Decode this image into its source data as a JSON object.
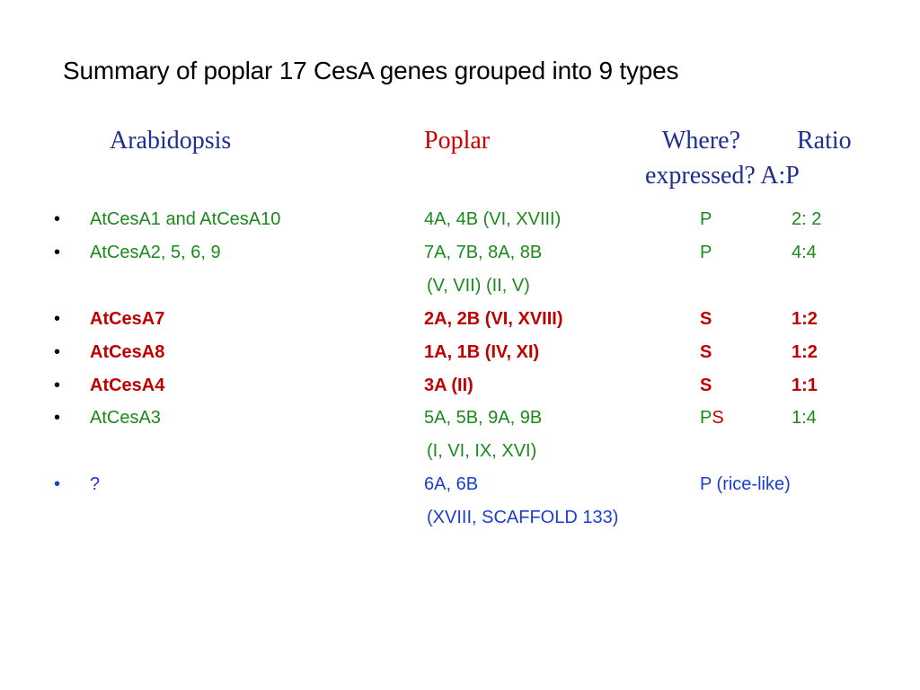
{
  "title": "Summary of poplar 17 CesA genes  grouped into 9 types",
  "headers": {
    "arabidopsis": "Arabidopsis",
    "poplar": "Poplar",
    "where": "Where?",
    "ratio": "Ratio",
    "expressed": "expressed? A:P"
  },
  "bullet": "•",
  "rows": [
    {
      "arab": "AtCesA1 and AtCesA10",
      "poplar": "4A, 4B (VI, XVIII)",
      "where": "P",
      "ratio": "2: 2"
    },
    {
      "arab": "AtCesA2, 5, 6, 9",
      "poplar": "7A, 7B, 8A, 8B",
      "where": "P",
      "ratio": "4:4",
      "poplar_cont": "(V, VII) (II, V)"
    },
    {
      "arab": "AtCesA7",
      "poplar": "2A, 2B (VI, XVIII)",
      "where": "S",
      "ratio": "1:2"
    },
    {
      "arab": "AtCesA8",
      "poplar": "1A, 1B (IV, XI)",
      "where": "S",
      "ratio": "1:2"
    },
    {
      "arab": "AtCesA4",
      "poplar": "3A (II)",
      "where": "S",
      "ratio": "1:1"
    },
    {
      "arab": "AtCesA3",
      "poplar": "5A, 5B, 9A, 9B",
      "where_p": "P",
      "where_s": "S",
      "ratio": "1:4",
      "poplar_cont": "(I, VI, IX, XVI)"
    },
    {
      "arab": "?",
      "poplar": "6A, 6B",
      "where": "P (rice-like)",
      "poplar_cont": "(XVIII, SCAFFOLD 133)"
    }
  ]
}
